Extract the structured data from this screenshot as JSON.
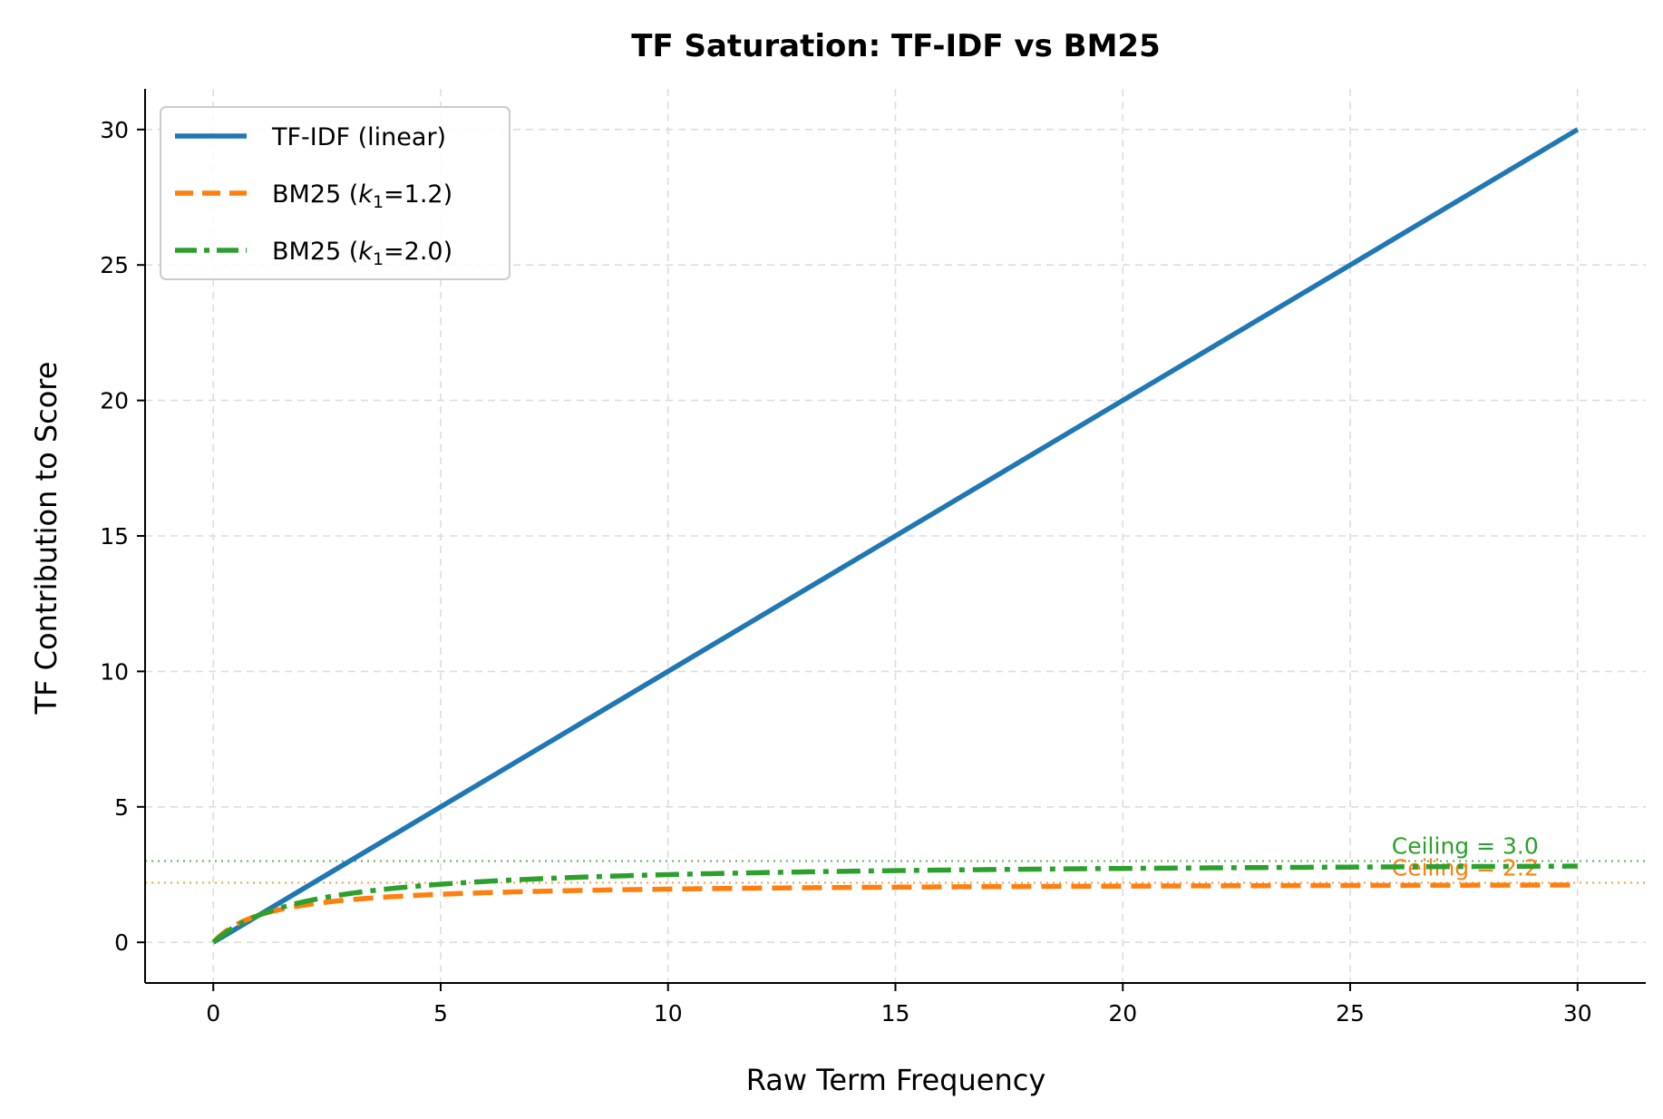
{
  "chart_data": {
    "type": "line",
    "title": "TF Saturation: TF-IDF vs BM25",
    "xlabel": "Raw Term Frequency",
    "ylabel": "TF Contribution to Score",
    "xlim": [
      -1.5,
      31.5
    ],
    "ylim": [
      -1.5,
      31.5
    ],
    "xticks": [
      0,
      5,
      10,
      15,
      20,
      25,
      30
    ],
    "yticks": [
      0,
      5,
      10,
      15,
      20,
      25,
      30
    ],
    "grid": true,
    "legend_position": "top-left",
    "series": [
      {
        "name": "TF-IDF (linear)",
        "legend_main": "TF-IDF (linear)",
        "legend_k": "",
        "legend_sub": "",
        "legend_rest": "",
        "color": "#1f77b4",
        "style": "solid",
        "formula": "linear",
        "x": [
          0,
          30
        ],
        "y": [
          0,
          30
        ]
      },
      {
        "name": "BM25 (k1=1.2)",
        "legend_main": "BM25 (",
        "legend_k": "k",
        "legend_sub": "1",
        "legend_rest": "=1.2)",
        "color": "#ff7f0e",
        "style": "dashed",
        "formula": "bm25",
        "k1": 1.2,
        "x": [
          0,
          0.5,
          1,
          2,
          3,
          5,
          8,
          10,
          15,
          20,
          25,
          30
        ],
        "y": [
          0,
          0.65,
          1.0,
          1.38,
          1.57,
          1.77,
          1.91,
          1.96,
          2.03,
          2.07,
          2.1,
          2.12
        ]
      },
      {
        "name": "BM25 (k1=2.0)",
        "legend_main": "BM25 (",
        "legend_k": "k",
        "legend_sub": "1",
        "legend_rest": "=2.0)",
        "color": "#2ca02c",
        "style": "dashdot",
        "formula": "bm25",
        "k1": 2.0,
        "x": [
          0,
          0.5,
          1,
          2,
          3,
          5,
          8,
          10,
          15,
          20,
          25,
          30
        ],
        "y": [
          0,
          0.6,
          1.0,
          1.5,
          1.8,
          2.14,
          2.4,
          2.5,
          2.65,
          2.73,
          2.78,
          2.81
        ]
      }
    ],
    "reference_lines": [
      {
        "y": 3.0,
        "label": "Ceiling = 3.0",
        "color": "#2ca02c"
      },
      {
        "y": 2.2,
        "label": "Ceiling = 2.2",
        "color": "#ff7f0e"
      }
    ]
  }
}
